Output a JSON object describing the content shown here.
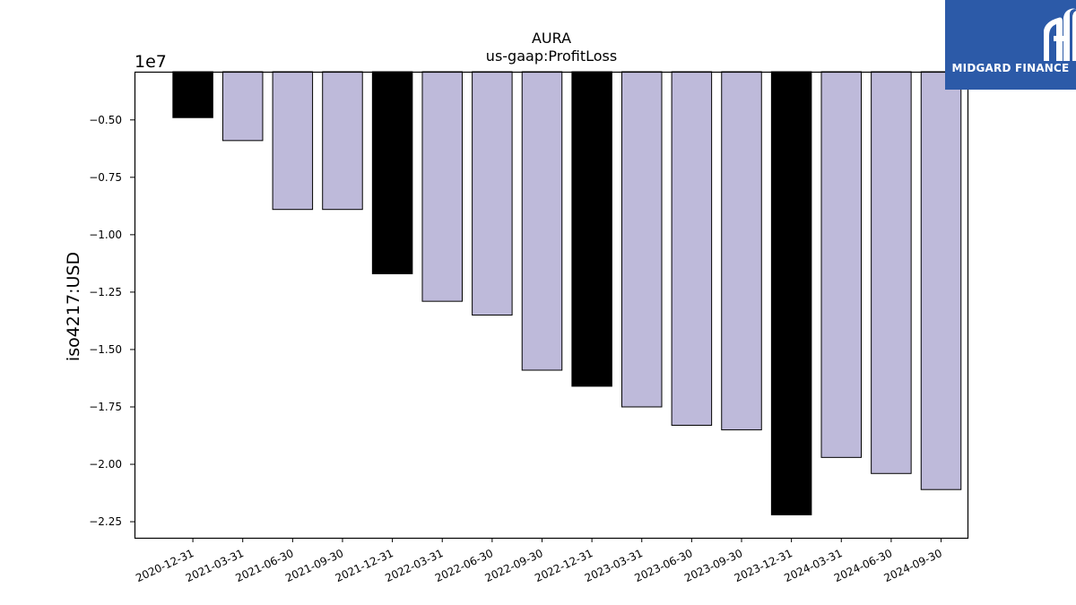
{
  "chart_data": {
    "type": "bar",
    "title": "AURA",
    "subtitle": "us-gaap:ProfitLoss",
    "ylabel": "iso4217:USD",
    "xlabel": "",
    "offset_label": "1e7",
    "ylim": [
      -2.32,
      -0.29
    ],
    "yticks": [
      -0.5,
      -0.75,
      -1.0,
      -1.25,
      -1.5,
      -1.75,
      -2.0,
      -2.25
    ],
    "ytick_labels": [
      "−0.50",
      "−0.75",
      "−1.00",
      "−1.25",
      "−1.50",
      "−1.75",
      "−2.00",
      "−2.25"
    ],
    "categories": [
      "2020-12-31",
      "2021-03-31",
      "2021-06-30",
      "2021-09-30",
      "2021-12-31",
      "2022-03-31",
      "2022-06-30",
      "2022-09-30",
      "2022-12-31",
      "2023-03-31",
      "2023-06-30",
      "2023-09-30",
      "2023-12-31",
      "2024-03-31",
      "2024-06-30",
      "2024-09-30"
    ],
    "values": [
      -0.49,
      -0.59,
      -0.89,
      -0.89,
      -1.17,
      -1.29,
      -1.35,
      -1.59,
      -1.66,
      -1.75,
      -1.83,
      -1.85,
      -2.22,
      -1.97,
      -2.04,
      -2.11
    ],
    "bar_colors": [
      "#000000",
      "#bebada",
      "#bebada",
      "#bebada",
      "#000000",
      "#bebada",
      "#bebada",
      "#bebada",
      "#000000",
      "#bebada",
      "#bebada",
      "#bebada",
      "#000000",
      "#bebada",
      "#bebada",
      "#bebada"
    ],
    "grid": false
  },
  "logo": {
    "text": "MIDGARD FINANCE",
    "background": "#2c5aa8"
  }
}
